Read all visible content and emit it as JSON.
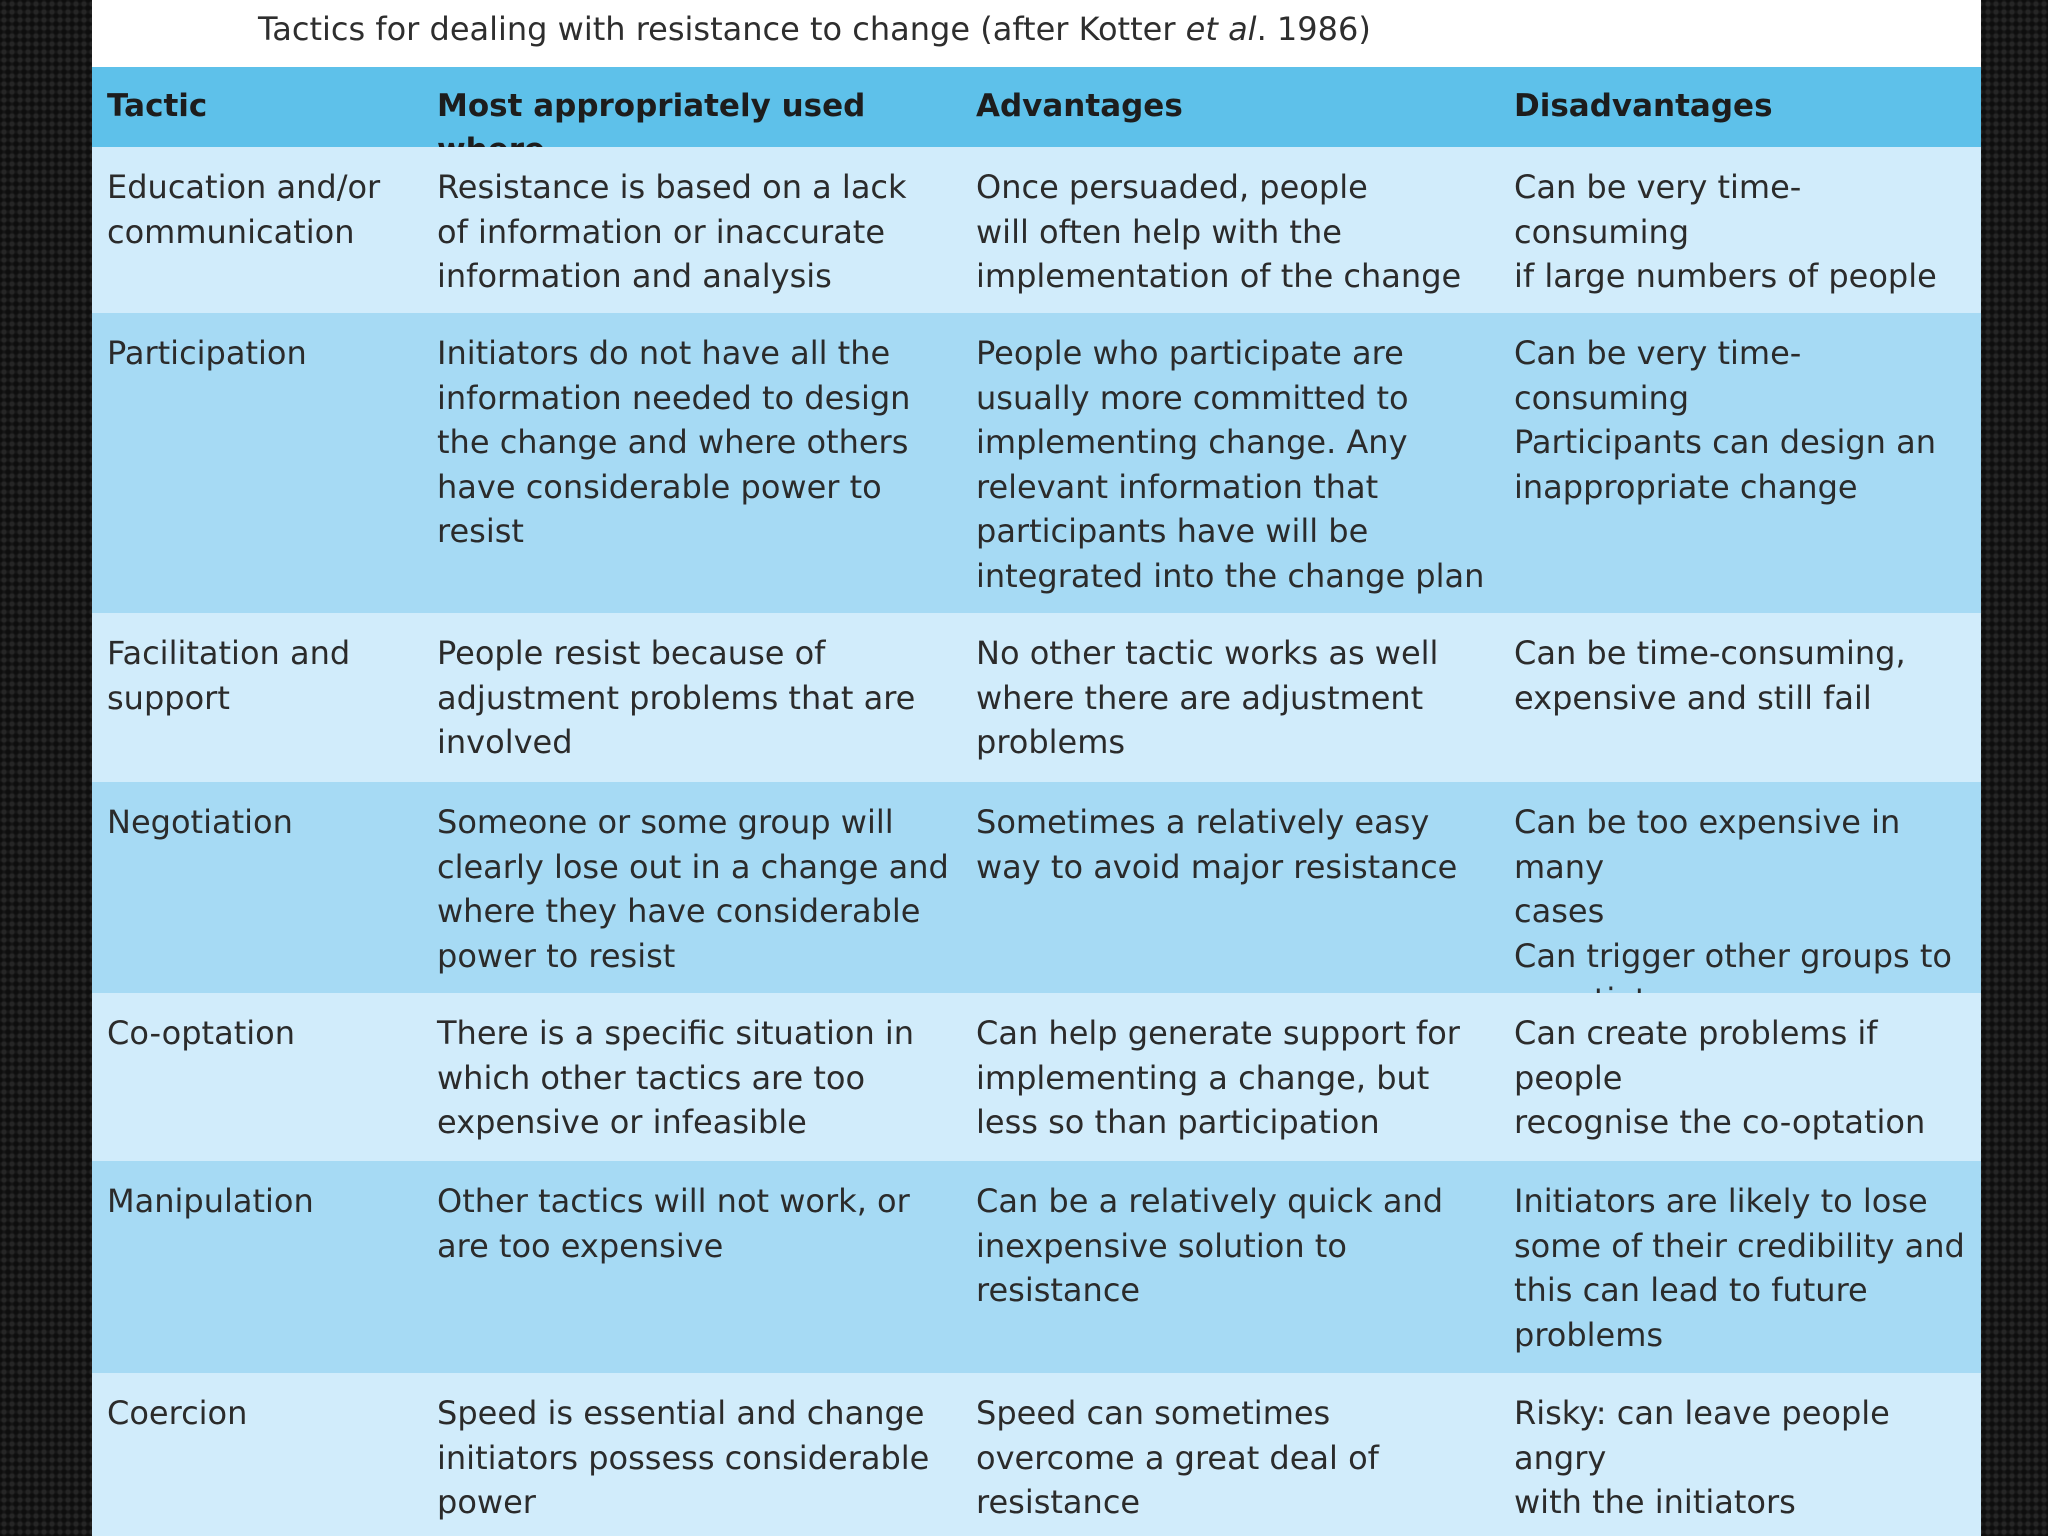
{
  "caption": {
    "prefix": "Tactics for dealing with resistance to change (after Kotter ",
    "etal": "et al",
    "suffix": ". 1986)"
  },
  "table": {
    "headers": [
      "Tactic",
      "Most appropriately used where",
      "Advantages",
      "Disadvantages"
    ],
    "rows": [
      {
        "tactic": "Education and/or\ncommunication",
        "where": "Resistance is based on a lack\nof information or inaccurate\ninformation and analysis",
        "advantages": "Once persuaded, people\nwill often help with the\nimplementation of the change",
        "disadvantages": "Can be very time-consuming\nif large numbers of people are\ninvolved"
      },
      {
        "tactic": "Participation",
        "where": "Initiators do not have all the\ninformation needed to design\nthe change and where others\nhave considerable power to\nresist",
        "advantages": "People who participate are\nusually more committed to\nimplementing change. Any\nrelevant information that\nparticipants have will be\nintegrated into the change plan",
        "disadvantages": "Can be very time-consuming\nParticipants can design an\ninappropriate change"
      },
      {
        "tactic": "Facilitation and\nsupport",
        "where": "People resist because of\nadjustment problems that are\ninvolved",
        "advantages": "No other tactic works as well\nwhere there are adjustment\nproblems",
        "disadvantages": "Can be time-consuming,\nexpensive and still fail"
      },
      {
        "tactic": "Negotiation",
        "where": "Someone or some group will\nclearly lose out in a change and\nwhere they have considerable\npower to resist",
        "advantages": "Sometimes a relatively easy\nway to avoid major resistance",
        "disadvantages": "Can be too expensive in many\ncases\nCan trigger other groups to\nnegotiate"
      },
      {
        "tactic": "Co-optation",
        "where": "There is a specific situation in\nwhich other tactics are too\nexpensive or infeasible",
        "advantages": "Can help generate support for\nimplementing a change, but\nless so than participation",
        "disadvantages": "Can create problems if people\nrecognise the co-optation"
      },
      {
        "tactic": "Manipulation",
        "where": "Other tactics will not work, or\nare too expensive",
        "advantages": "Can be a relatively quick and\ninexpensive solution to\nresistance",
        "disadvantages": "Initiators are likely to lose\nsome of their credibility and\nthis can lead to future\nproblems"
      },
      {
        "tactic": "Coercion",
        "where": "Speed is essential and change\ninitiators possess considerable\npower",
        "advantages": "Speed can sometimes\novercome a great deal of\nresistance",
        "disadvantages": "Risky: can leave people angry\nwith the initiators"
      }
    ]
  },
  "colors": {
    "header": "#5ec1ea",
    "row_light": "#d1ecfb",
    "row_dark": "#a6daf4",
    "text": "#2b2b2b"
  }
}
